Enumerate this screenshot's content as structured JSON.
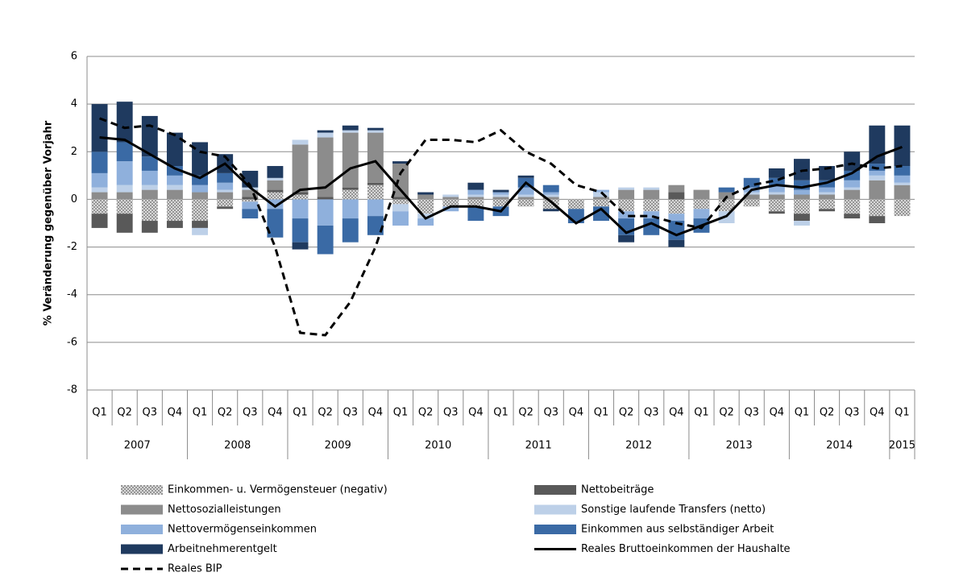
{
  "chart_data": {
    "type": "bar",
    "y_label": "% Veränderung gegenüber Vorjahr",
    "categories": [
      "Q1",
      "Q2",
      "Q3",
      "Q4",
      "Q1",
      "Q2",
      "Q3",
      "Q4",
      "Q1",
      "Q2",
      "Q3",
      "Q4",
      "Q1",
      "Q2",
      "Q3",
      "Q4",
      "Q1",
      "Q2",
      "Q3",
      "Q4",
      "Q1",
      "Q2",
      "Q3",
      "Q4",
      "Q1",
      "Q2",
      "Q3",
      "Q4",
      "Q1",
      "Q2",
      "Q3",
      "Q4",
      "Q1"
    ],
    "years": [
      "2007",
      "2008",
      "2009",
      "2010",
      "2011",
      "2012",
      "2013",
      "2014",
      "2015"
    ],
    "ylim": [
      -8,
      6
    ],
    "yticks": [
      -8,
      -6,
      -4,
      -2,
      0,
      2,
      4,
      6
    ],
    "grid": true,
    "series": [
      {
        "name": "Einkommen- u. Vermögensteuer (negativ)",
        "type": "bar",
        "color": "#a6a6a6",
        "pattern": "dots",
        "values": [
          -0.6,
          -0.6,
          -0.9,
          -0.9,
          -0.9,
          -0.3,
          -0.1,
          0.3,
          0.2,
          0.0,
          0.4,
          0.6,
          -0.2,
          -0.6,
          -0.3,
          -0.3,
          -0.3,
          -0.3,
          -0.4,
          -0.4,
          -0.3,
          -0.5,
          -0.5,
          -0.6,
          -0.4,
          -0.5,
          -0.3,
          -0.5,
          -0.6,
          -0.4,
          -0.6,
          -0.7,
          -0.7
        ]
      },
      {
        "name": "Nettobeiträge",
        "type": "bar",
        "color": "#595959",
        "values": [
          -0.6,
          -0.8,
          -0.5,
          -0.3,
          -0.3,
          -0.1,
          0.1,
          0.1,
          0.1,
          0.1,
          0.1,
          0.1,
          0.1,
          0.0,
          0.0,
          0.0,
          0.0,
          0.0,
          0.0,
          0.0,
          0.0,
          0.0,
          0.0,
          0.3,
          0.0,
          0.0,
          0.0,
          -0.1,
          -0.3,
          -0.1,
          -0.2,
          -0.3,
          0.0
        ]
      },
      {
        "name": "Nettosozialleistungen",
        "type": "bar",
        "color": "#8c8c8c",
        "values": [
          0.3,
          0.3,
          0.4,
          0.4,
          0.3,
          0.3,
          0.3,
          0.4,
          2.0,
          2.5,
          2.3,
          2.1,
          1.4,
          0.2,
          0.1,
          0.1,
          0.1,
          0.1,
          0.1,
          0.0,
          0.1,
          0.4,
          0.4,
          0.3,
          0.4,
          0.3,
          0.2,
          0.2,
          0.2,
          0.2,
          0.4,
          0.8,
          0.6
        ]
      },
      {
        "name": "Sonstige laufende Transfers (netto)",
        "type": "bar",
        "color": "#bdd0e8",
        "values": [
          0.2,
          0.3,
          0.2,
          0.2,
          -0.3,
          0.1,
          0.1,
          0.1,
          0.2,
          0.2,
          0.1,
          0.1,
          -0.3,
          -0.2,
          0.1,
          0.1,
          0.1,
          0.1,
          0.1,
          0.0,
          0.2,
          0.1,
          0.1,
          0.0,
          0.0,
          -0.5,
          0.1,
          0.1,
          -0.2,
          0.1,
          0.1,
          0.2,
          0.1
        ]
      },
      {
        "name": "Nettovermögenseinkommen",
        "type": "bar",
        "color": "#8fb0dc",
        "values": [
          0.6,
          1.0,
          0.6,
          0.4,
          0.3,
          0.3,
          -0.3,
          -0.4,
          -0.8,
          -1.1,
          -0.8,
          -0.7,
          -0.6,
          -0.3,
          -0.2,
          0.2,
          0.1,
          0.3,
          0.1,
          0.0,
          0.1,
          -0.3,
          -0.3,
          -0.3,
          -0.4,
          0.0,
          0.2,
          0.3,
          0.2,
          0.2,
          0.3,
          0.2,
          0.3
        ]
      },
      {
        "name": "Einkommen aus selbständiger Arbeit",
        "type": "bar",
        "color": "#3a6aa5",
        "values": [
          0.9,
          0.8,
          0.6,
          0.4,
          0.4,
          0.4,
          -0.4,
          -1.2,
          -1.0,
          -1.2,
          -1.0,
          -0.8,
          0.0,
          0.0,
          0.0,
          -0.6,
          -0.4,
          0.4,
          0.3,
          -0.6,
          -0.6,
          -0.7,
          -0.7,
          -0.8,
          -0.6,
          0.2,
          0.4,
          0.3,
          0.4,
          0.3,
          0.4,
          0.3,
          0.4
        ]
      },
      {
        "name": "Arbeitnehmerentgelt",
        "type": "bar",
        "color": "#1f3a5f",
        "values": [
          2.0,
          1.7,
          1.7,
          1.4,
          1.4,
          0.8,
          0.7,
          0.5,
          -0.3,
          0.1,
          0.2,
          0.1,
          0.1,
          0.1,
          0.0,
          0.3,
          0.1,
          0.1,
          -0.1,
          0.0,
          0.0,
          -0.3,
          0.0,
          -0.3,
          0.0,
          0.0,
          0.0,
          0.4,
          0.9,
          0.6,
          0.8,
          1.6,
          1.7
        ]
      },
      {
        "name": "Reales Bruttoeinkommen der Haushalte",
        "type": "line",
        "color": "#000000",
        "dash": false,
        "values": [
          2.6,
          2.5,
          1.9,
          1.3,
          0.9,
          1.5,
          0.5,
          -0.3,
          0.4,
          0.5,
          1.3,
          1.6,
          0.4,
          -0.8,
          -0.3,
          -0.3,
          -0.5,
          0.7,
          -0.1,
          -1.0,
          -0.4,
          -1.4,
          -1.0,
          -1.5,
          -1.1,
          -0.7,
          0.4,
          0.6,
          0.5,
          0.7,
          1.1,
          1.8,
          2.2
        ]
      },
      {
        "name": "Reales BIP",
        "type": "line",
        "color": "#000000",
        "dash": true,
        "values": [
          3.4,
          3.0,
          3.1,
          2.7,
          2.0,
          1.8,
          0.6,
          -2.0,
          -5.6,
          -5.7,
          -4.3,
          -2.0,
          1.1,
          2.5,
          2.5,
          2.4,
          2.9,
          2.0,
          1.5,
          0.6,
          0.3,
          -0.7,
          -0.7,
          -1.0,
          -1.2,
          0.1,
          0.6,
          0.8,
          1.2,
          1.3,
          1.5,
          1.3,
          1.4
        ]
      }
    ]
  }
}
